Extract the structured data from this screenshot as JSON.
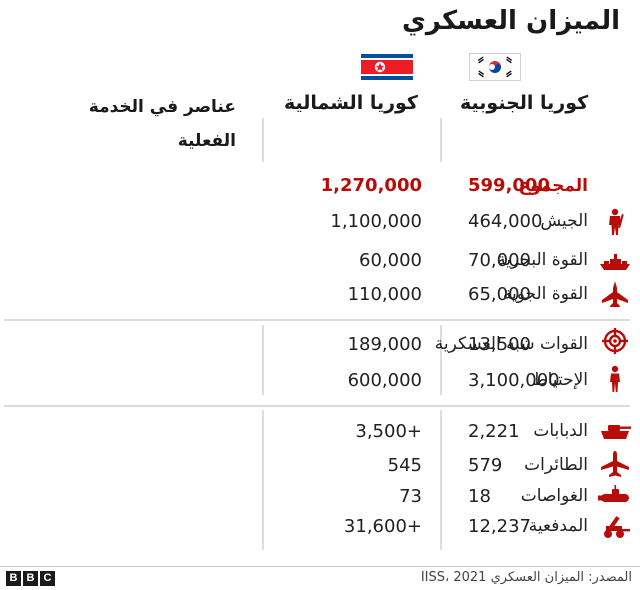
{
  "title": "الميزان العسكري",
  "columns": {
    "category": "عناصر في الخدمة الفعلية",
    "north": "كوريا الشمالية",
    "south": "كوريا الجنوبية"
  },
  "flags": {
    "north": "north-korea-flag",
    "south": "south-korea-flag"
  },
  "colors": {
    "accent_red": "#b80c09",
    "divider": "#dcdcdc"
  },
  "rows": [
    {
      "label": "المجموع",
      "icon": "",
      "north": "1,270,000",
      "south": "599,000"
    },
    {
      "label": "الجيش",
      "icon": "soldier-icon",
      "north": "1,100,000",
      "south": "464,000"
    },
    {
      "label": "القوة البحرية",
      "icon": "ship-icon",
      "north": "60,000",
      "south": "70,000"
    },
    {
      "label": "القوة الجوية",
      "icon": "fighter-jet-icon",
      "north": "110,000",
      "south": "65,000"
    },
    {
      "label": "القوات شبه العسكرية",
      "icon": "crosshair-icon",
      "north": "189,000",
      "south": "13,500"
    },
    {
      "label": "الإحتياط",
      "icon": "person-icon",
      "north": "600,000",
      "south": "3,100,000"
    },
    {
      "label": "الدبابات",
      "icon": "tank-icon",
      "north": "3,500+",
      "south": "2,221"
    },
    {
      "label": "الطائرات",
      "icon": "airplane-icon",
      "north": "545",
      "south": "579"
    },
    {
      "label": "الغواصات",
      "icon": "submarine-icon",
      "north": "73",
      "south": "18"
    },
    {
      "label": "المدفعية",
      "icon": "artillery-icon",
      "north": "31,600+",
      "south": "12,237"
    }
  ],
  "footer": {
    "logo": [
      "B",
      "B",
      "C"
    ],
    "source": "المصدر: الميزان العسكري IISS، 2021"
  }
}
